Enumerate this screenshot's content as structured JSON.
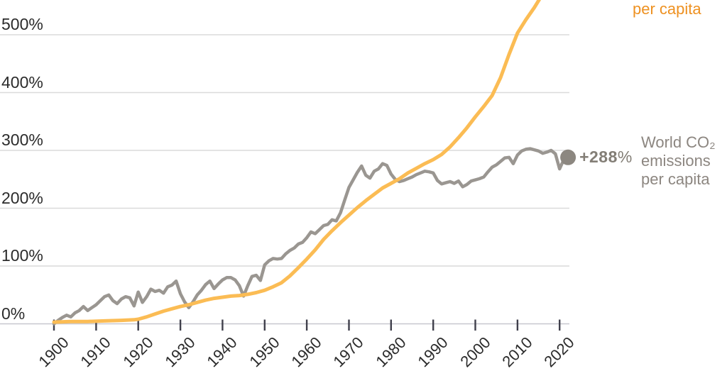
{
  "chart_data": {
    "type": "line",
    "title": "",
    "xlabel": "",
    "ylabel": "",
    "x_axis": {
      "tick_values": [
        1900,
        1910,
        1920,
        1930,
        1940,
        1950,
        1960,
        1970,
        1980,
        1990,
        2000,
        2010,
        2020
      ],
      "tick_labels": [
        "1900",
        "1910",
        "1920",
        "1930",
        "1940",
        "1950",
        "1960",
        "1970",
        "1980",
        "1990",
        "2000",
        "2010",
        "2020"
      ],
      "range": [
        1900,
        2022
      ]
    },
    "y_axis": {
      "tick_values": [
        0,
        100,
        200,
        300,
        400,
        500
      ],
      "tick_labels": [
        "0%",
        "100%",
        "200%",
        "300%",
        "400%",
        "500%"
      ],
      "unit": "%",
      "gridlines": true,
      "visible_range": [
        0,
        560
      ]
    },
    "legend_position": "end-of-line-labels-right",
    "series": [
      {
        "id": "co2",
        "label_lines": [
          "World CO₂",
          "emissions",
          "per capita"
        ],
        "color": "#9a9691",
        "label_color": "#8c8680",
        "end_marker": {
          "dot_color": "#8c8780",
          "value_bold": "+288",
          "value_suffix": "%"
        },
        "points": [
          [
            1900,
            0
          ],
          [
            1901,
            6
          ],
          [
            1902,
            11
          ],
          [
            1903,
            15
          ],
          [
            1904,
            12
          ],
          [
            1905,
            19
          ],
          [
            1906,
            23
          ],
          [
            1907,
            30
          ],
          [
            1908,
            23
          ],
          [
            1909,
            28
          ],
          [
            1910,
            33
          ],
          [
            1911,
            40
          ],
          [
            1912,
            47
          ],
          [
            1913,
            50
          ],
          [
            1914,
            40
          ],
          [
            1915,
            35
          ],
          [
            1916,
            43
          ],
          [
            1917,
            47
          ],
          [
            1918,
            45
          ],
          [
            1919,
            31
          ],
          [
            1920,
            55
          ],
          [
            1921,
            37
          ],
          [
            1922,
            47
          ],
          [
            1923,
            60
          ],
          [
            1924,
            56
          ],
          [
            1925,
            58
          ],
          [
            1926,
            53
          ],
          [
            1927,
            64
          ],
          [
            1928,
            67
          ],
          [
            1929,
            74
          ],
          [
            1930,
            52
          ],
          [
            1931,
            38
          ],
          [
            1932,
            28
          ],
          [
            1933,
            38
          ],
          [
            1934,
            50
          ],
          [
            1935,
            58
          ],
          [
            1936,
            68
          ],
          [
            1937,
            74
          ],
          [
            1938,
            61
          ],
          [
            1939,
            69
          ],
          [
            1940,
            76
          ],
          [
            1941,
            80
          ],
          [
            1942,
            80
          ],
          [
            1943,
            76
          ],
          [
            1944,
            66
          ],
          [
            1945,
            48
          ],
          [
            1946,
            66
          ],
          [
            1947,
            82
          ],
          [
            1948,
            84
          ],
          [
            1949,
            75
          ],
          [
            1950,
            102
          ],
          [
            1951,
            109
          ],
          [
            1952,
            113
          ],
          [
            1953,
            112
          ],
          [
            1954,
            113
          ],
          [
            1955,
            121
          ],
          [
            1956,
            127
          ],
          [
            1957,
            131
          ],
          [
            1958,
            138
          ],
          [
            1959,
            141
          ],
          [
            1960,
            149
          ],
          [
            1961,
            159
          ],
          [
            1962,
            156
          ],
          [
            1963,
            163
          ],
          [
            1964,
            170
          ],
          [
            1965,
            172
          ],
          [
            1966,
            180
          ],
          [
            1967,
            178
          ],
          [
            1968,
            192
          ],
          [
            1969,
            214
          ],
          [
            1970,
            236
          ],
          [
            1971,
            249
          ],
          [
            1972,
            262
          ],
          [
            1973,
            273
          ],
          [
            1974,
            257
          ],
          [
            1975,
            252
          ],
          [
            1976,
            264
          ],
          [
            1977,
            268
          ],
          [
            1978,
            277
          ],
          [
            1979,
            274
          ],
          [
            1980,
            259
          ],
          [
            1981,
            250
          ],
          [
            1982,
            246
          ],
          [
            1983,
            248
          ],
          [
            1984,
            251
          ],
          [
            1985,
            254
          ],
          [
            1986,
            258
          ],
          [
            1987,
            261
          ],
          [
            1988,
            264
          ],
          [
            1989,
            263
          ],
          [
            1990,
            261
          ],
          [
            1991,
            248
          ],
          [
            1992,
            242
          ],
          [
            1993,
            244
          ],
          [
            1994,
            246
          ],
          [
            1995,
            243
          ],
          [
            1996,
            247
          ],
          [
            1997,
            237
          ],
          [
            1998,
            241
          ],
          [
            1999,
            247
          ],
          [
            2000,
            249
          ],
          [
            2001,
            251
          ],
          [
            2002,
            254
          ],
          [
            2003,
            263
          ],
          [
            2004,
            271
          ],
          [
            2005,
            275
          ],
          [
            2006,
            281
          ],
          [
            2007,
            287
          ],
          [
            2008,
            288
          ],
          [
            2009,
            277
          ],
          [
            2010,
            292
          ],
          [
            2011,
            299
          ],
          [
            2012,
            302
          ],
          [
            2013,
            303
          ],
          [
            2014,
            301
          ],
          [
            2015,
            299
          ],
          [
            2016,
            295
          ],
          [
            2017,
            297
          ],
          [
            2018,
            300
          ],
          [
            2019,
            294
          ],
          [
            2020,
            268
          ],
          [
            2021,
            284
          ],
          [
            2022,
            288
          ]
        ]
      },
      {
        "id": "orange",
        "label": "per capita",
        "color": "#fbbc54",
        "label_color": "#ee9121",
        "points": [
          [
            1900,
            3
          ],
          [
            1904,
            4
          ],
          [
            1908,
            4
          ],
          [
            1912,
            5
          ],
          [
            1916,
            6
          ],
          [
            1919,
            7
          ],
          [
            1920,
            8
          ],
          [
            1922,
            12
          ],
          [
            1924,
            17
          ],
          [
            1926,
            22
          ],
          [
            1928,
            26
          ],
          [
            1930,
            30
          ],
          [
            1932,
            33
          ],
          [
            1934,
            37
          ],
          [
            1936,
            41
          ],
          [
            1938,
            44
          ],
          [
            1940,
            46
          ],
          [
            1942,
            48
          ],
          [
            1944,
            49
          ],
          [
            1946,
            51
          ],
          [
            1948,
            54
          ],
          [
            1950,
            58
          ],
          [
            1952,
            64
          ],
          [
            1954,
            71
          ],
          [
            1956,
            83
          ],
          [
            1958,
            97
          ],
          [
            1960,
            112
          ],
          [
            1962,
            128
          ],
          [
            1964,
            146
          ],
          [
            1966,
            161
          ],
          [
            1968,
            175
          ],
          [
            1970,
            188
          ],
          [
            1972,
            201
          ],
          [
            1974,
            213
          ],
          [
            1976,
            224
          ],
          [
            1978,
            235
          ],
          [
            1980,
            243
          ],
          [
            1982,
            251
          ],
          [
            1984,
            261
          ],
          [
            1986,
            269
          ],
          [
            1988,
            277
          ],
          [
            1990,
            284
          ],
          [
            1992,
            293
          ],
          [
            1994,
            306
          ],
          [
            1996,
            322
          ],
          [
            1998,
            339
          ],
          [
            2000,
            358
          ],
          [
            2002,
            376
          ],
          [
            2004,
            395
          ],
          [
            2006,
            426
          ],
          [
            2008,
            466
          ],
          [
            2010,
            503
          ],
          [
            2012,
            526
          ],
          [
            2014,
            547
          ],
          [
            2015.6,
            566
          ]
        ]
      }
    ]
  },
  "annotations": {
    "end_value_bold": "+288",
    "end_value_suffix": "%"
  }
}
